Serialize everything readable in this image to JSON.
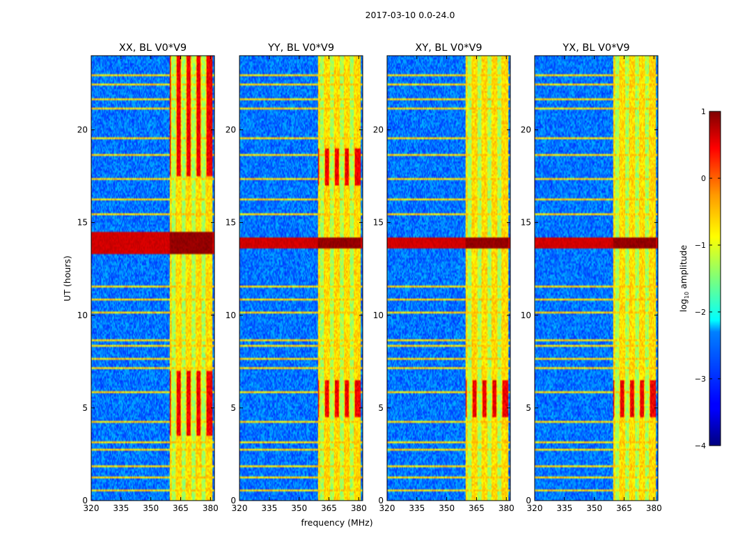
{
  "figure": {
    "suptitle": "2017-03-10 0.0-24.0",
    "xlabel": "frequency (MHz)",
    "ylabel": "UT (hours)"
  },
  "colorbar": {
    "label_prefix": "log",
    "label_sub": "10",
    "label_suffix": " amplitude",
    "ticks": [
      1,
      0,
      -1,
      -2,
      -3,
      -4
    ],
    "tick_labels": [
      "1",
      "0",
      "−1",
      "−2",
      "−3",
      "−4"
    ],
    "range": [
      -4,
      1
    ],
    "colormap": "jet"
  },
  "chart_data": [
    {
      "type": "heatmap",
      "title": "XX, BL V0*V9",
      "xlim": [
        320,
        382
      ],
      "ylim": [
        0,
        24
      ],
      "xticks": [
        320,
        335,
        350,
        365,
        380
      ],
      "xtick_labels": [
        "320",
        "335",
        "350",
        "365",
        "380"
      ],
      "yticks": [
        0,
        5,
        10,
        15,
        20
      ],
      "ytick_labels": [
        "0",
        "5",
        "10",
        "15",
        "20"
      ],
      "background_level": -2.8,
      "band": {
        "x": [
          359.5,
          381
        ],
        "level": -0.7,
        "subbands": [
          361.5,
          366.5,
          371.5,
          376.5
        ],
        "hot_hours": [
          [
            3.5,
            7
          ],
          [
            17.5,
            24
          ]
        ]
      },
      "rfi_hours": [
        0.5,
        1.2,
        1.8,
        2.7,
        3.1,
        4.2,
        5.8,
        7.1,
        7.6,
        8.3,
        8.6,
        10.1,
        10.8,
        11.5,
        13.9,
        15.4,
        16.2,
        17.3,
        18.6,
        19.5,
        21.1,
        21.6,
        22.4,
        22.9
      ],
      "strong_rfi": {
        "hours": [
          13.3,
          14.5
        ],
        "level": 0.9
      }
    },
    {
      "type": "heatmap",
      "title": "YY, BL V0*V9",
      "xlim": [
        320,
        382
      ],
      "ylim": [
        0,
        24
      ],
      "xticks": [
        320,
        335,
        350,
        365,
        380
      ],
      "xtick_labels": [
        "320",
        "335",
        "350",
        "365",
        "380"
      ],
      "yticks": [
        0,
        5,
        10,
        15,
        20
      ],
      "ytick_labels": [
        "0",
        "5",
        "10",
        "15",
        "20"
      ],
      "background_level": -2.8,
      "band": {
        "x": [
          359.5,
          381
        ],
        "level": -0.7,
        "subbands": [
          361.5,
          366.5,
          371.5,
          376.5
        ],
        "hot_hours": [
          [
            4.5,
            6.5
          ],
          [
            17,
            19
          ]
        ]
      },
      "rfi_hours": [
        0.5,
        1.2,
        1.8,
        2.7,
        3.1,
        4.2,
        5.8,
        7.1,
        7.6,
        8.3,
        8.6,
        10.1,
        10.8,
        11.5,
        13.9,
        15.4,
        16.2,
        17.3,
        18.6,
        19.5,
        21.1,
        21.6,
        22.4,
        22.9
      ],
      "strong_rfi": {
        "hours": [
          13.6,
          14.2
        ],
        "level": 0.9
      }
    },
    {
      "type": "heatmap",
      "title": "XY, BL V0*V9",
      "xlim": [
        320,
        382
      ],
      "ylim": [
        0,
        24
      ],
      "xticks": [
        320,
        335,
        350,
        365,
        380
      ],
      "xtick_labels": [
        "320",
        "335",
        "350",
        "365",
        "380"
      ],
      "yticks": [
        0,
        5,
        10,
        15,
        20
      ],
      "ytick_labels": [
        "0",
        "5",
        "10",
        "15",
        "20"
      ],
      "background_level": -2.8,
      "band": {
        "x": [
          359.5,
          381
        ],
        "level": -0.7,
        "subbands": [
          361.5,
          366.5,
          371.5,
          376.5
        ],
        "hot_hours": [
          [
            4.5,
            6.5
          ]
        ]
      },
      "rfi_hours": [
        0.5,
        1.2,
        1.8,
        2.7,
        3.1,
        4.2,
        5.8,
        7.1,
        7.6,
        8.3,
        8.6,
        10.1,
        10.8,
        11.5,
        13.9,
        15.4,
        16.2,
        17.3,
        18.6,
        19.5,
        21.1,
        21.6,
        22.4,
        22.9
      ],
      "strong_rfi": {
        "hours": [
          13.6,
          14.2
        ],
        "level": 0.9
      }
    },
    {
      "type": "heatmap",
      "title": "YX, BL V0*V9",
      "xlim": [
        320,
        382
      ],
      "ylim": [
        0,
        24
      ],
      "xticks": [
        320,
        335,
        350,
        365,
        380
      ],
      "xtick_labels": [
        "320",
        "335",
        "350",
        "365",
        "380"
      ],
      "yticks": [
        0,
        5,
        10,
        15,
        20
      ],
      "ytick_labels": [
        "0",
        "5",
        "10",
        "15",
        "20"
      ],
      "background_level": -2.8,
      "band": {
        "x": [
          359.5,
          381
        ],
        "level": -0.7,
        "subbands": [
          361.5,
          366.5,
          371.5,
          376.5
        ],
        "hot_hours": [
          [
            4.5,
            6.5
          ]
        ]
      },
      "rfi_hours": [
        0.5,
        1.2,
        1.8,
        2.7,
        3.1,
        4.2,
        5.8,
        7.1,
        7.6,
        8.3,
        8.6,
        10.1,
        10.8,
        11.5,
        13.9,
        15.4,
        16.2,
        17.3,
        18.6,
        19.5,
        21.1,
        21.6,
        22.4,
        22.9
      ],
      "strong_rfi": {
        "hours": [
          13.6,
          14.2
        ],
        "level": 0.9
      }
    }
  ]
}
